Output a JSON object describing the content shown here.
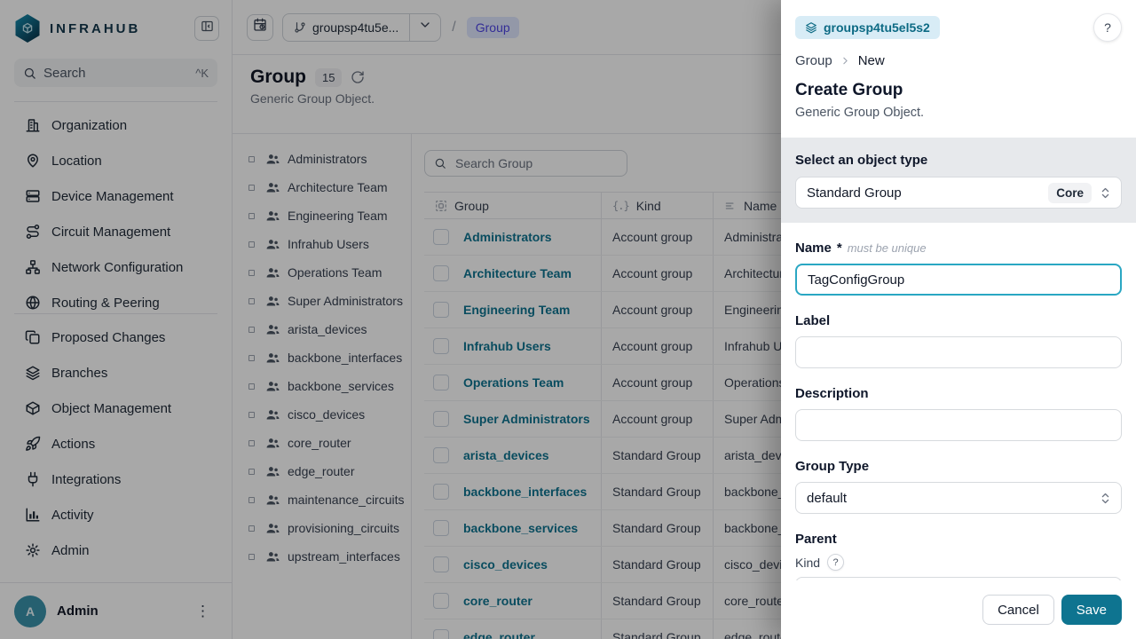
{
  "colors": {
    "accent": "#0e7490",
    "link": "#0e7490",
    "focus_border": "#2aa7c3",
    "drawer_badge_bg": "#d8ecf6",
    "drawer_badge_text": "#0c6a84",
    "crumb_badge_bg": "#e0e7ff",
    "crumb_badge_text": "#4f46e5"
  },
  "sidebar": {
    "logo_text": "INFRAHUB",
    "search": {
      "label": "Search",
      "shortcut": "^K"
    },
    "menu_primary": [
      {
        "label": "Organization",
        "icon": "building"
      },
      {
        "label": "Location",
        "icon": "map-pin"
      },
      {
        "label": "Device Management",
        "icon": "server"
      },
      {
        "label": "Circuit Management",
        "icon": "route"
      },
      {
        "label": "Network Configuration",
        "icon": "network"
      },
      {
        "label": "Routing & Peering",
        "icon": "globe"
      }
    ],
    "menu_secondary": [
      {
        "label": "Proposed Changes",
        "icon": "copy-diff"
      },
      {
        "label": "Branches",
        "icon": "layers"
      },
      {
        "label": "Object Management",
        "icon": "box"
      },
      {
        "label": "Actions",
        "icon": "rocket"
      },
      {
        "label": "Integrations",
        "icon": "plug"
      },
      {
        "label": "Activity",
        "icon": "bar-chart"
      },
      {
        "label": "Admin",
        "icon": "gear"
      }
    ],
    "user": {
      "initial": "A",
      "name": "Admin"
    }
  },
  "topbar": {
    "branch_label": "groupsp4tu5e...",
    "separator": "/",
    "object_badge": "Group"
  },
  "main": {
    "title": "Group",
    "count": "15",
    "subtitle": "Generic Group Object.",
    "search_placeholder": "Search Group",
    "tree": [
      "Administrators",
      "Architecture Team",
      "Engineering Team",
      "Infrahub Users",
      "Operations Team",
      "Super Administrators",
      "arista_devices",
      "backbone_interfaces",
      "backbone_services",
      "cisco_devices",
      "core_router",
      "edge_router",
      "maintenance_circuits",
      "provisioning_circuits",
      "upstream_interfaces"
    ],
    "table": {
      "columns": [
        "Group",
        "Kind",
        "Name"
      ],
      "rows": [
        {
          "group": "Administrators",
          "kind": "Account group",
          "name": "Administrators"
        },
        {
          "group": "Architecture Team",
          "kind": "Account group",
          "name": "Architecture Team"
        },
        {
          "group": "Engineering Team",
          "kind": "Account group",
          "name": "Engineering Team"
        },
        {
          "group": "Infrahub Users",
          "kind": "Account group",
          "name": "Infrahub Users"
        },
        {
          "group": "Operations Team",
          "kind": "Account group",
          "name": "Operations Team"
        },
        {
          "group": "Super Administrators",
          "kind": "Account group",
          "name": "Super Administrators"
        },
        {
          "group": "arista_devices",
          "kind": "Standard Group",
          "name": "arista_devices"
        },
        {
          "group": "backbone_interfaces",
          "kind": "Standard Group",
          "name": "backbone_interfaces"
        },
        {
          "group": "backbone_services",
          "kind": "Standard Group",
          "name": "backbone_services"
        },
        {
          "group": "cisco_devices",
          "kind": "Standard Group",
          "name": "cisco_devices"
        },
        {
          "group": "core_router",
          "kind": "Standard Group",
          "name": "core_router"
        },
        {
          "group": "edge_router",
          "kind": "Standard Group",
          "name": "edge_router"
        }
      ]
    }
  },
  "drawer": {
    "branch_badge": "groupsp4tu5el5s2",
    "help": "?",
    "crumb": {
      "parent": "Group",
      "current": "New"
    },
    "title": "Create Group",
    "subtitle": "Generic Group Object.",
    "object_type": {
      "label": "Select an object type",
      "value": "Standard Group",
      "tag": "Core"
    },
    "fields": {
      "name": {
        "label": "Name",
        "required": "*",
        "hint": "must be unique",
        "value": "TagConfigGroup"
      },
      "label": {
        "label": "Label",
        "value": ""
      },
      "description": {
        "label": "Description",
        "value": ""
      },
      "group_type": {
        "label": "Group Type",
        "value": "default"
      },
      "parent": {
        "label": "Parent",
        "kind_label": "Kind",
        "kind_help": "?",
        "value": ""
      }
    },
    "actions": {
      "cancel": "Cancel",
      "save": "Save"
    }
  }
}
